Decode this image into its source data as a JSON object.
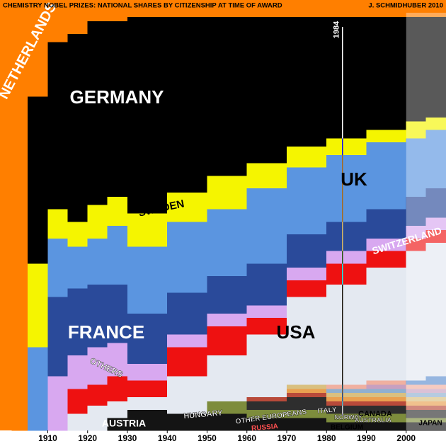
{
  "chart_data": {
    "type": "bar",
    "stacked": true,
    "title": "CHEMISTRY NOBEL PRIZES: NATIONAL SHARES BY CITIZENSHIP AT TIME OF AWARD",
    "subtitle": "J. SCHMIDHUBER 2010",
    "x": [
      1901,
      1905,
      1910,
      1915,
      1920,
      1925,
      1930,
      1940,
      1950,
      1960,
      1970,
      1980,
      1990,
      2000,
      2005
    ],
    "xlim": [
      1898,
      2010
    ],
    "xticks": [
      1910,
      1920,
      1930,
      1940,
      1950,
      1960,
      1970,
      1980,
      1990,
      2000
    ],
    "ylim": [
      0,
      100
    ],
    "annotations": [
      {
        "text": "1984",
        "x": 1984
      }
    ],
    "shaded_region": [
      2000,
      2010
    ],
    "series": [
      {
        "name": "AUSTRIA",
        "color": "#141414",
        "values": [
          0,
          0,
          0,
          0,
          0,
          3,
          5,
          4,
          4,
          3,
          3,
          2,
          2,
          2,
          2
        ]
      },
      {
        "name": "HUNGARY",
        "color": "#7d8c3c",
        "values": [
          0,
          0,
          0,
          0,
          0,
          0,
          0,
          0,
          3,
          2,
          2,
          2,
          2,
          1,
          1
        ]
      },
      {
        "name": "OTHER EUROPEANS",
        "color": "#2e2e2e",
        "values": [
          0,
          0,
          0,
          0,
          0,
          0,
          0,
          0,
          0,
          2,
          3,
          2,
          2,
          2,
          2
        ]
      },
      {
        "name": "RUSSIA",
        "color": "#b84a3a",
        "values": [
          0,
          0,
          0,
          0,
          0,
          0,
          0,
          0,
          0,
          1,
          1,
          1,
          1,
          1,
          1
        ]
      },
      {
        "name": "ITALY",
        "color": "#e9a050",
        "values": [
          0,
          0,
          0,
          0,
          0,
          0,
          0,
          0,
          0,
          0,
          1,
          1,
          1,
          1,
          1
        ]
      },
      {
        "name": "BELGIUM",
        "color": "#d9c080",
        "values": [
          0,
          0,
          0,
          0,
          0,
          0,
          0,
          0,
          0,
          0,
          1,
          1,
          1,
          1,
          1
        ]
      },
      {
        "name": "NORWAY",
        "color": "#8fb0d0",
        "values": [
          0,
          0,
          0,
          0,
          0,
          0,
          0,
          0,
          0,
          0,
          0,
          1,
          1,
          1,
          1
        ]
      },
      {
        "name": "AUSTRALIA",
        "color": "#c8a0c0",
        "values": [
          0,
          0,
          0,
          0,
          0,
          0,
          0,
          0,
          0,
          0,
          0,
          0,
          1,
          1,
          1
        ]
      },
      {
        "name": "CANADA",
        "color": "#f0b0a0",
        "values": [
          0,
          0,
          0,
          0,
          0,
          0,
          0,
          0,
          0,
          0,
          0,
          1,
          1,
          1,
          1
        ]
      },
      {
        "name": "JAPAN",
        "color": "#5f8fd0",
        "values": [
          0,
          0,
          0,
          0,
          0,
          0,
          0,
          0,
          0,
          0,
          0,
          0,
          0,
          1,
          2
        ]
      },
      {
        "name": "USA",
        "color": "#e4e9f1",
        "values": [
          0,
          0,
          0,
          4,
          6,
          4,
          3,
          9,
          11,
          15,
          21,
          24,
          27,
          31,
          32
        ]
      },
      {
        "name": "SWITZERLAND",
        "color": "#ee1111",
        "values": [
          0,
          0,
          0,
          6,
          5,
          6,
          4,
          7,
          7,
          4,
          4,
          5,
          4,
          3,
          3
        ]
      },
      {
        "name": "OTHERS",
        "color": "#d8a8f0",
        "values": [
          0,
          0,
          13,
          8,
          9,
          8,
          4,
          3,
          3,
          3,
          3,
          3,
          3,
          3,
          3
        ]
      },
      {
        "name": "FRANCE",
        "color": "#2a4a9a",
        "values": [
          0,
          0,
          19,
          16,
          15,
          14,
          12,
          10,
          9,
          10,
          8,
          7,
          7,
          7,
          7
        ]
      },
      {
        "name": "UK",
        "color": "#5b95e0",
        "values": [
          0,
          20,
          14,
          10,
          11,
          14,
          16,
          17,
          16,
          18,
          16,
          16,
          16,
          14,
          14
        ]
      },
      {
        "name": "SWEDEN",
        "color": "#f5f500",
        "values": [
          0,
          20,
          7,
          6,
          8,
          7,
          8,
          7,
          8,
          6,
          5,
          4,
          3,
          4,
          3
        ]
      },
      {
        "name": "GERMANY",
        "color": "#000000",
        "values": [
          0,
          40,
          40,
          45,
          44,
          42,
          47,
          42,
          38,
          35,
          31,
          29,
          27,
          25,
          24
        ]
      },
      {
        "name": "NETHERLANDS",
        "color": "#ff7f00",
        "values": [
          100,
          20,
          7,
          5,
          2,
          2,
          1,
          1,
          1,
          1,
          1,
          1,
          1,
          1,
          1
        ]
      }
    ]
  }
}
